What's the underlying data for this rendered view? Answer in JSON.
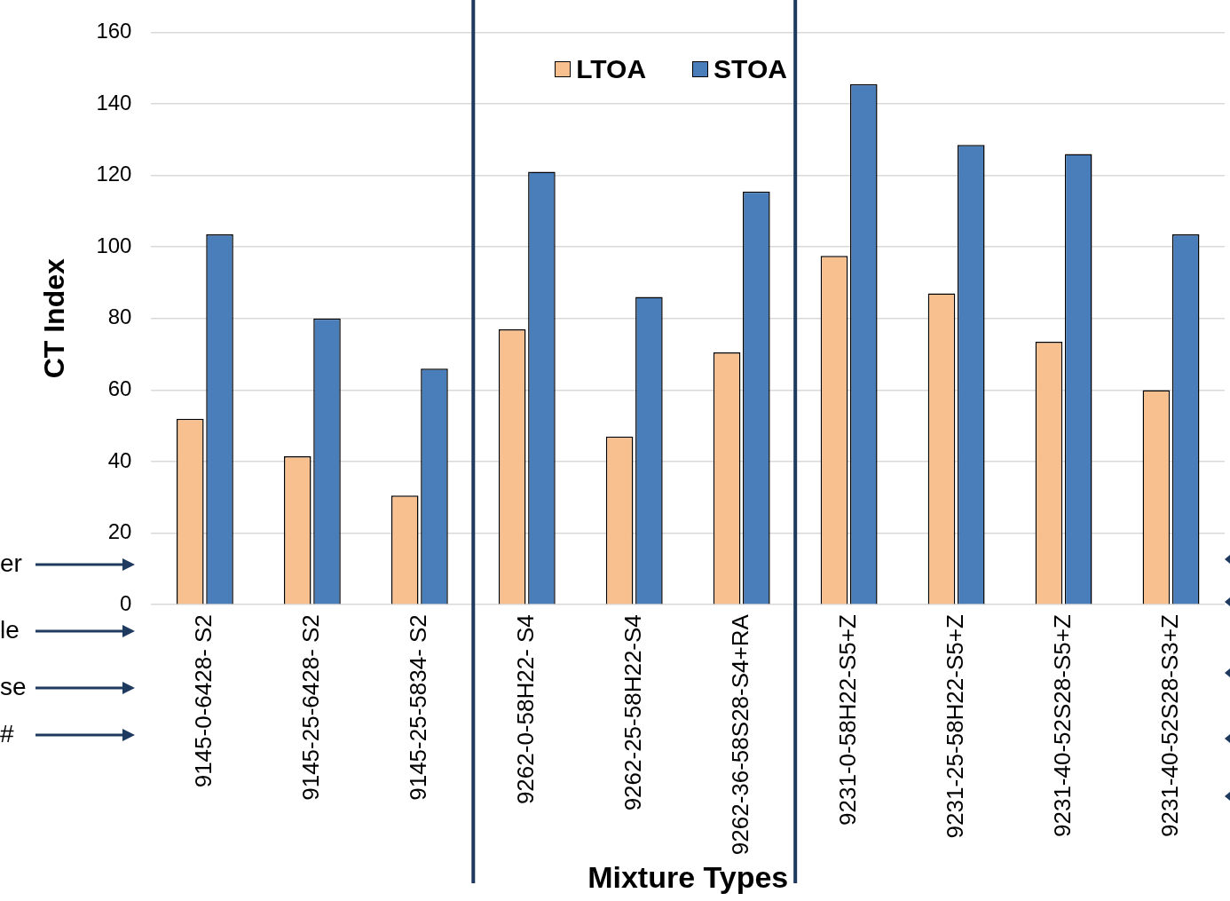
{
  "chart_data": {
    "type": "bar",
    "xlabel": "Mixture Types",
    "ylabel": "CT Index",
    "categories": [
      "9145-0-6428- S2",
      "9145-25-6428- S2",
      "9145-25-5834- S2",
      "9262-0-58H22- S4",
      "9262-25-58H22-S4",
      "9262-36-58S28-S4+RA",
      "9231-0-58H22-S5+Z",
      "9231-25-58H22-S5+Z",
      "9231-40-52S28-S5+Z",
      "9231-40-52S28-S3+Z"
    ],
    "series": [
      {
        "name": "LTOA",
        "color": "#f8c08f",
        "values": [
          52,
          41.5,
          30.5,
          77,
          47,
          70.5,
          97.5,
          87,
          73.5,
          60
        ]
      },
      {
        "name": "STOA",
        "color": "#4a7ebb",
        "values": [
          103.5,
          80,
          66,
          121,
          86,
          115.5,
          145.5,
          128.5,
          126,
          103.5
        ]
      }
    ],
    "ylim": [
      0,
      160
    ],
    "yticks": [
      0,
      20,
      40,
      60,
      80,
      100,
      120,
      140,
      160
    ],
    "grid": "y",
    "legend": "top",
    "annotations": [
      "er",
      "le",
      "se",
      "#"
    ]
  }
}
